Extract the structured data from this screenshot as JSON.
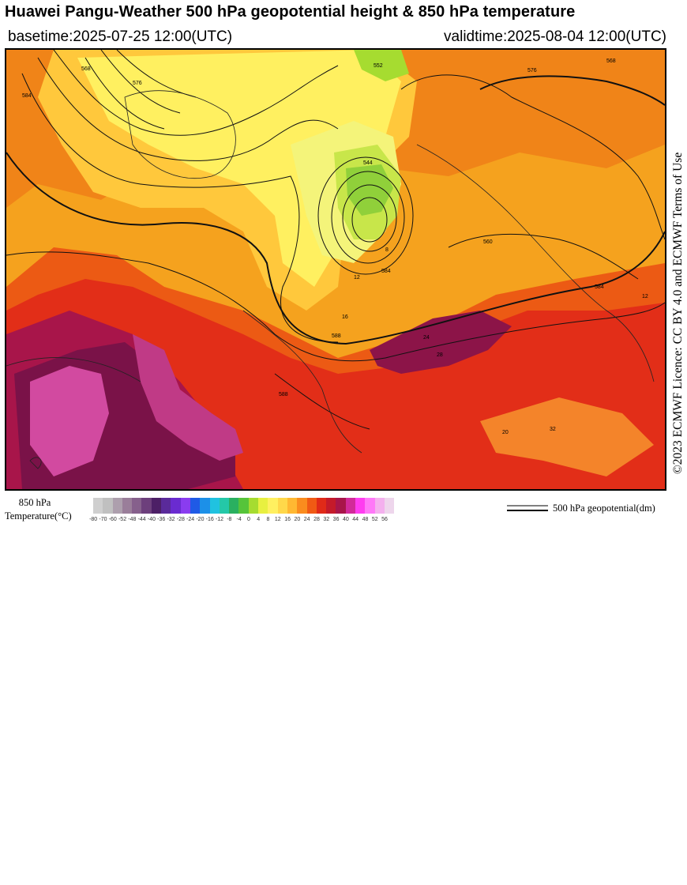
{
  "header": {
    "title": "Huawei Pangu-Weather 500 hPa geopotential height & 850 hPa temperature",
    "basetime": "basetime:2025-07-25 12:00(UTC)",
    "validtime": "validtime:2025-08-04 12:00(UTC)"
  },
  "licence": "©2023 ECMWF Licence: CC BY 4.0 and ECMWF Terms of Use",
  "colorbar": {
    "label_line1": "850 hPa",
    "label_line2": "Temperature(°C)",
    "ticks": [
      "-80",
      "-70",
      "-60",
      "-52",
      "-48",
      "-44",
      "-40",
      "-36",
      "-32",
      "-28",
      "-24",
      "-20",
      "-16",
      "-12",
      "-8",
      "-4",
      "0",
      "4",
      "8",
      "12",
      "16",
      "20",
      "24",
      "28",
      "32",
      "36",
      "40",
      "44",
      "48",
      "52",
      "56"
    ],
    "colors": [
      "#cfcfcf",
      "#c0c0c0",
      "#ad9fad",
      "#9a7e9a",
      "#86608c",
      "#6d3f7c",
      "#4d1f66",
      "#5a2a9a",
      "#6a2bd0",
      "#8a3cf0",
      "#1f5ae6",
      "#1c90e8",
      "#20c2e0",
      "#24c8a8",
      "#2ab060",
      "#56c43a",
      "#a6dc30",
      "#e8f040",
      "#fff060",
      "#ffd84a",
      "#ffb832",
      "#fa8c1e",
      "#f05a14",
      "#e02a18",
      "#c41a2a",
      "#a8154a",
      "#d22a9a",
      "#ff3cf0",
      "#ff78f8",
      "#f4b0ee",
      "#eed6ec"
    ]
  },
  "legend": {
    "text": "500 hPa geopotential(dm)"
  },
  "map": {
    "contour_labels": [
      {
        "text": "568"
      },
      {
        "text": "576"
      },
      {
        "text": "584"
      },
      {
        "text": "552"
      },
      {
        "text": "544"
      },
      {
        "text": "560"
      },
      {
        "text": "568"
      },
      {
        "text": "576"
      },
      {
        "text": "584"
      },
      {
        "text": "588"
      },
      {
        "text": "584"
      },
      {
        "text": "588"
      },
      {
        "text": "16"
      },
      {
        "text": "12"
      },
      {
        "text": "8"
      },
      {
        "text": "24"
      },
      {
        "text": "28"
      },
      {
        "text": "20"
      },
      {
        "text": "32"
      },
      {
        "text": "12"
      }
    ]
  }
}
